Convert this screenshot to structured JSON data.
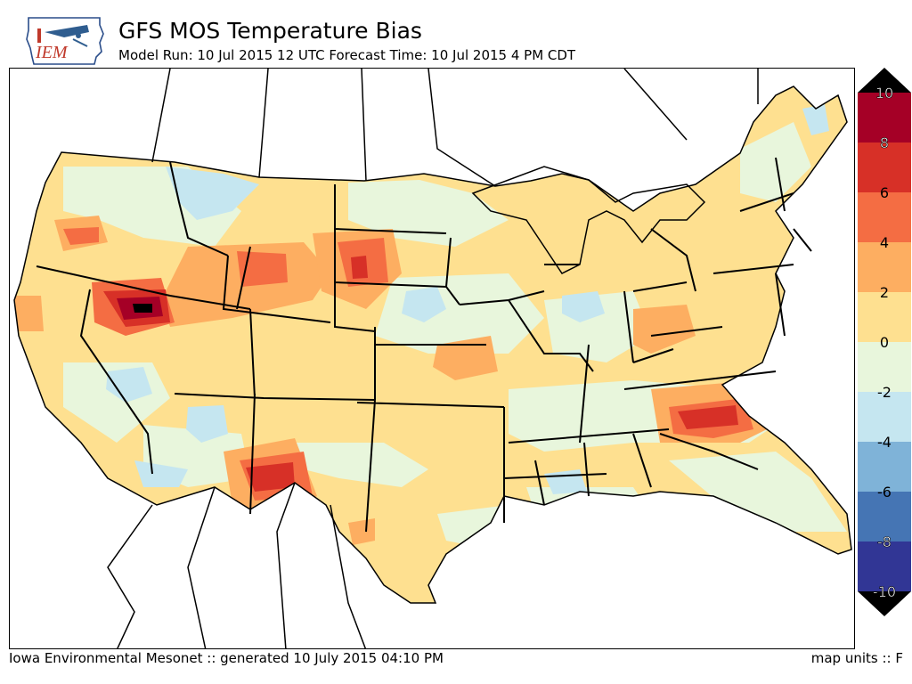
{
  "header": {
    "title": "GFS MOS Temperature Bias",
    "subtitle": "Model Run: 10 Jul 2015 12 UTC Forecast Time: 10 Jul 2015 4 PM CDT",
    "logo_text": "IEM"
  },
  "footer": {
    "left": "Iowa Environmental Mesonet :: generated 10 July 2015 04:10 PM",
    "right": "map units :: F"
  },
  "colorbar": {
    "tick_labels": [
      "10",
      "8",
      "6",
      "4",
      "2",
      "0",
      "-2",
      "-4",
      "-6",
      "-8",
      "-10"
    ],
    "bins": [
      {
        "min": 8,
        "max": 10,
        "color": "#a50026"
      },
      {
        "min": 6,
        "max": 8,
        "color": "#d73027"
      },
      {
        "min": 4,
        "max": 6,
        "color": "#f46d43"
      },
      {
        "min": 2,
        "max": 4,
        "color": "#fdae61"
      },
      {
        "min": 0,
        "max": 2,
        "color": "#fee090"
      },
      {
        "min": -2,
        "max": 0,
        "color": "#e8f6dc"
      },
      {
        "min": -4,
        "max": -2,
        "color": "#c5e6f0"
      },
      {
        "min": -6,
        "max": -4,
        "color": "#7fb3d8"
      },
      {
        "min": -8,
        "max": -6,
        "color": "#4575b4"
      },
      {
        "min": -10,
        "max": -8,
        "color": "#313695"
      }
    ],
    "over_color": "#000000",
    "under_color": "#000000"
  },
  "map": {
    "region": "CONUS",
    "background_color": "#ffffff",
    "boundary_color": "#000000"
  }
}
